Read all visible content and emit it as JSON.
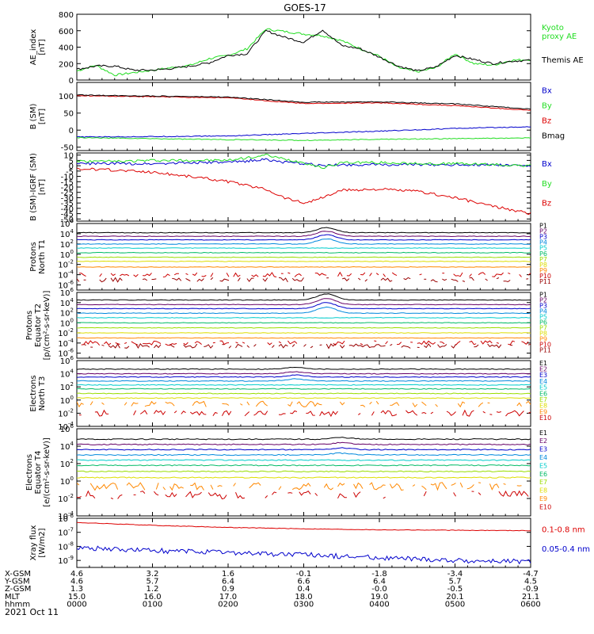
{
  "title": "GOES-17",
  "date_label": "2021 Oct 11",
  "colors": {
    "axis": "#000000",
    "black": "#000000",
    "green": "#22dd22",
    "red": "#dd0000",
    "blue": "#0000cc"
  },
  "chart_data": [
    {
      "type": "line",
      "ylabel": [
        "AE_index",
        "[nT]"
      ],
      "ylim": [
        0,
        800
      ],
      "yticks": [
        "0",
        "200",
        "400",
        "600",
        "800"
      ],
      "log_scale": false,
      "legend": [
        {
          "text": "Kyoto",
          "color": "#22dd22"
        },
        {
          "text": "proxy AE",
          "color": "#22dd22"
        },
        {
          "text": "Themis AE",
          "color": "#000000"
        }
      ],
      "x": [
        0,
        0.25,
        0.5,
        0.75,
        1.0,
        1.25,
        1.5,
        1.75,
        2.0,
        2.25,
        2.5,
        2.75,
        3.0,
        3.25,
        3.5,
        3.75,
        4.0,
        4.25,
        4.5,
        4.75,
        5.0,
        5.25,
        5.5,
        5.75,
        6.0
      ],
      "series": [
        {
          "name": "Kyoto proxy AE",
          "color": "#22dd22",
          "values": [
            110,
            180,
            60,
            90,
            120,
            150,
            180,
            260,
            300,
            380,
            620,
            590,
            560,
            540,
            480,
            380,
            290,
            150,
            100,
            150,
            320,
            200,
            180,
            240,
            250
          ]
        },
        {
          "name": "Themis AE",
          "color": "#000000",
          "values": [
            130,
            170,
            170,
            120,
            120,
            140,
            170,
            210,
            300,
            320,
            600,
            520,
            460,
            610,
            420,
            380,
            280,
            170,
            110,
            160,
            300,
            250,
            200,
            230,
            240
          ]
        }
      ]
    },
    {
      "type": "line",
      "ylabel": [
        "B (SM)",
        "[nT]"
      ],
      "ylim": [
        -60,
        140
      ],
      "yticks": [
        "-50",
        "0",
        "50",
        "100"
      ],
      "log_scale": false,
      "legend": [
        {
          "text": "Bx",
          "color": "#0000cc"
        },
        {
          "text": "By",
          "color": "#22dd22"
        },
        {
          "text": "Bz",
          "color": "#dd0000"
        },
        {
          "text": "Bmag",
          "color": "#000000"
        }
      ],
      "x": [
        0,
        1,
        2,
        3,
        4,
        5,
        6
      ],
      "series": [
        {
          "name": "Bx",
          "color": "#0000cc",
          "values": [
            -20,
            -19,
            -17,
            -10,
            -3,
            5,
            10
          ]
        },
        {
          "name": "By",
          "color": "#22dd22",
          "values": [
            -22,
            -25,
            -28,
            -30,
            -27,
            -25,
            -23
          ]
        },
        {
          "name": "Bz",
          "color": "#dd0000",
          "values": [
            101,
            98,
            95,
            78,
            80,
            72,
            58
          ]
        },
        {
          "name": "Bmag",
          "color": "#000000",
          "values": [
            103,
            100,
            97,
            82,
            83,
            77,
            62
          ]
        }
      ]
    },
    {
      "type": "line",
      "ylabel": [
        "B (SM)-IGRF (SM)",
        "[nT]"
      ],
      "ylim": [
        -52,
        12
      ],
      "yticks": [
        "10",
        "5",
        "0",
        "-5",
        "-10",
        "-15",
        "-20",
        "-25",
        "-30",
        "-35",
        "-40",
        "-45",
        "-50"
      ],
      "log_scale": false,
      "legend": [
        {
          "text": "Bx",
          "color": "#0000cc"
        },
        {
          "text": "By",
          "color": "#22dd22"
        },
        {
          "text": "Bz",
          "color": "#dd0000"
        }
      ],
      "x": [
        0,
        0.5,
        1,
        1.5,
        2.0,
        2.5,
        2.75,
        3.0,
        3.25,
        3.5,
        4.0,
        4.5,
        5.0,
        5.5,
        6.0
      ],
      "series": [
        {
          "name": "Bx",
          "color": "#0000cc",
          "values": [
            2,
            2,
            2,
            3,
            3,
            6,
            3,
            2,
            0,
            1,
            1,
            1,
            1,
            1,
            0
          ]
        },
        {
          "name": "By",
          "color": "#22dd22",
          "values": [
            4,
            4,
            5,
            5,
            5,
            10,
            6,
            3,
            -2,
            3,
            3,
            2,
            2,
            1,
            0
          ]
        },
        {
          "name": "Bz",
          "color": "#dd0000",
          "values": [
            -3,
            -4,
            -6,
            -10,
            -15,
            -22,
            -30,
            -35,
            -30,
            -23,
            -22,
            -24,
            -30,
            -38,
            -45
          ]
        }
      ]
    },
    {
      "type": "line",
      "ylabel": [
        "Protons",
        "North T1"
      ],
      "log_scale": true,
      "ylim_exp": [
        -7,
        6
      ],
      "ytick_exps": [
        6,
        4,
        2,
        0,
        -2,
        -4,
        -6
      ],
      "legend": [
        {
          "text": "P1",
          "color": "#000000"
        },
        {
          "text": "P2",
          "color": "#660066"
        },
        {
          "text": "P3",
          "color": "#0000cc"
        },
        {
          "text": "P4",
          "color": "#0088dd"
        },
        {
          "text": "P5",
          "color": "#00cccc"
        },
        {
          "text": "P6",
          "color": "#00bb66"
        },
        {
          "text": "P7",
          "color": "#99dd00"
        },
        {
          "text": "P8",
          "color": "#dddd00"
        },
        {
          "text": "P9",
          "color": "#ff8800"
        },
        {
          "text": "P10",
          "color": "#cc0000"
        },
        {
          "text": "P11",
          "color": "#990000"
        }
      ],
      "levels": [
        4.2,
        3.5,
        2.8,
        2.0,
        1.2,
        0.3,
        -0.6,
        -1.4,
        -2.5,
        -4.0,
        -5.0
      ],
      "colors": [
        "#000000",
        "#660066",
        "#0000cc",
        "#0088dd",
        "#00cccc",
        "#00bb66",
        "#99dd00",
        "#dddd00",
        "#ff8800",
        "#cc0000",
        "#990000"
      ],
      "bump_at_hours": 3.3,
      "bump_exp": 1.0
    },
    {
      "type": "line",
      "ylabel": [
        "Protons",
        "Equator T2",
        "[p/(cm²-s-sr-keV)]"
      ],
      "log_scale": true,
      "ylim_exp": [
        -7,
        6
      ],
      "ytick_exps": [
        6,
        4,
        2,
        0,
        -2,
        -4,
        -6
      ],
      "legend": [
        {
          "text": "P1",
          "color": "#000000"
        },
        {
          "text": "P2",
          "color": "#660066"
        },
        {
          "text": "P3",
          "color": "#0000cc"
        },
        {
          "text": "P4",
          "color": "#0088dd"
        },
        {
          "text": "P5",
          "color": "#00cccc"
        },
        {
          "text": "P6",
          "color": "#00bb66"
        },
        {
          "text": "P7",
          "color": "#99dd00"
        },
        {
          "text": "P8",
          "color": "#dddd00"
        },
        {
          "text": "P9",
          "color": "#ff8800"
        },
        {
          "text": "P10",
          "color": "#cc0000"
        },
        {
          "text": "P11",
          "color": "#990000"
        }
      ],
      "levels": [
        4.5,
        3.6,
        2.8,
        1.9,
        1.0,
        0.0,
        -1.0,
        -2.0,
        -3.0,
        -4.0,
        -4.6
      ],
      "colors": [
        "#000000",
        "#660066",
        "#0000cc",
        "#0088dd",
        "#00cccc",
        "#00bb66",
        "#99dd00",
        "#dddd00",
        "#ff8800",
        "#cc0000",
        "#990000"
      ],
      "bump_at_hours": 3.3,
      "bump_exp": 1.2
    },
    {
      "type": "line",
      "ylabel": [
        "Electrons",
        "North T3"
      ],
      "log_scale": true,
      "ylim_exp": [
        -4,
        6
      ],
      "ytick_exps": [
        6,
        4,
        2,
        0,
        -2,
        -4
      ],
      "legend": [
        {
          "text": "E1",
          "color": "#000000"
        },
        {
          "text": "E2",
          "color": "#660066"
        },
        {
          "text": "E3",
          "color": "#0000cc"
        },
        {
          "text": "E4",
          "color": "#0088dd"
        },
        {
          "text": "E5",
          "color": "#00cccc"
        },
        {
          "text": "E6",
          "color": "#00bb66"
        },
        {
          "text": "E7",
          "color": "#99dd00"
        },
        {
          "text": "E8",
          "color": "#dddd00"
        },
        {
          "text": "E9",
          "color": "#ff8800"
        },
        {
          "text": "E10",
          "color": "#cc0000"
        }
      ],
      "levels": [
        4.7,
        4.0,
        3.5,
        2.9,
        2.3,
        1.7,
        1.0,
        0.3,
        -0.6,
        -2.0
      ],
      "colors": [
        "#000000",
        "#660066",
        "#0000cc",
        "#0088dd",
        "#00cccc",
        "#00bb66",
        "#99dd00",
        "#dddd00",
        "#ff8800",
        "#cc0000"
      ],
      "bump_at_hours": 2.9,
      "bump_exp": 0.3
    },
    {
      "type": "line",
      "ylabel": [
        "Electrons",
        "Equator T4",
        "[e/(cm²-s-sr-keV)]"
      ],
      "log_scale": true,
      "ylim_exp": [
        -4,
        6
      ],
      "ytick_exps": [
        6,
        4,
        2,
        0,
        -2,
        -4
      ],
      "legend": [
        {
          "text": "E1",
          "color": "#000000"
        },
        {
          "text": "E2",
          "color": "#660066"
        },
        {
          "text": "E3",
          "color": "#0000cc"
        },
        {
          "text": "E4",
          "color": "#0088dd"
        },
        {
          "text": "E5",
          "color": "#00cccc"
        },
        {
          "text": "E6",
          "color": "#00bb66"
        },
        {
          "text": "E7",
          "color": "#99dd00"
        },
        {
          "text": "E8",
          "color": "#dddd00"
        },
        {
          "text": "E9",
          "color": "#ff8800"
        },
        {
          "text": "E10",
          "color": "#cc0000"
        }
      ],
      "levels": [
        4.8,
        4.2,
        3.6,
        3.0,
        2.4,
        1.8,
        1.1,
        0.4,
        -0.6,
        -1.6
      ],
      "colors": [
        "#000000",
        "#660066",
        "#0000cc",
        "#0088dd",
        "#00cccc",
        "#00bb66",
        "#99dd00",
        "#dddd00",
        "#ff8800",
        "#cc0000"
      ],
      "bump_at_hours": 3.5,
      "bump_exp": 0.2
    },
    {
      "type": "line",
      "ylabel": [
        "Xray flux",
        "[W/m2]"
      ],
      "log_scale": true,
      "ylim_exp": [
        -9.5,
        -6
      ],
      "ytick_exps": [
        -6,
        -7,
        -8,
        -9
      ],
      "legend": [
        {
          "text": "0.1-0.8 nm",
          "color": "#dd0000"
        },
        {
          "text": "0.05-0.4 nm",
          "color": "#0000cc"
        }
      ],
      "x": [
        0,
        1,
        2,
        3,
        4,
        5,
        6
      ],
      "series": [
        {
          "name": "0.1-0.8 nm",
          "color": "#dd0000",
          "exps": [
            -6.3,
            -6.5,
            -6.65,
            -6.75,
            -6.82,
            -6.85,
            -6.88
          ]
        },
        {
          "name": "0.05-0.4 nm",
          "color": "#0000cc",
          "exps": [
            -8.1,
            -8.3,
            -8.45,
            -8.6,
            -8.8,
            -9.0,
            -9.1
          ]
        }
      ]
    }
  ],
  "x_axis": {
    "ticks": [
      "0000",
      "0100",
      "0200",
      "0300",
      "0400",
      "0500",
      "0600"
    ],
    "ephemeris": [
      {
        "label": "X-GSM",
        "values": [
          "4.6",
          "3.2",
          "1.6",
          "-0.1",
          "-1.8",
          "-3.4",
          "-4.7"
        ]
      },
      {
        "label": "Y-GSM",
        "values": [
          "4.6",
          "5.7",
          "6.4",
          "6.6",
          "6.4",
          "5.7",
          "4.5"
        ]
      },
      {
        "label": "Z-GSM",
        "values": [
          "1.3",
          "1.2",
          "0.9",
          "0.4",
          "-0.0",
          "-0.5",
          "-0.9"
        ]
      },
      {
        "label": "MLT",
        "values": [
          "15.0",
          "16.0",
          "17.0",
          "18.0",
          "19.0",
          "20.1",
          "21.1"
        ]
      },
      {
        "label": "hhmm",
        "values": [
          "0000",
          "0100",
          "0200",
          "0300",
          "0400",
          "0500",
          "0600"
        ]
      }
    ]
  }
}
